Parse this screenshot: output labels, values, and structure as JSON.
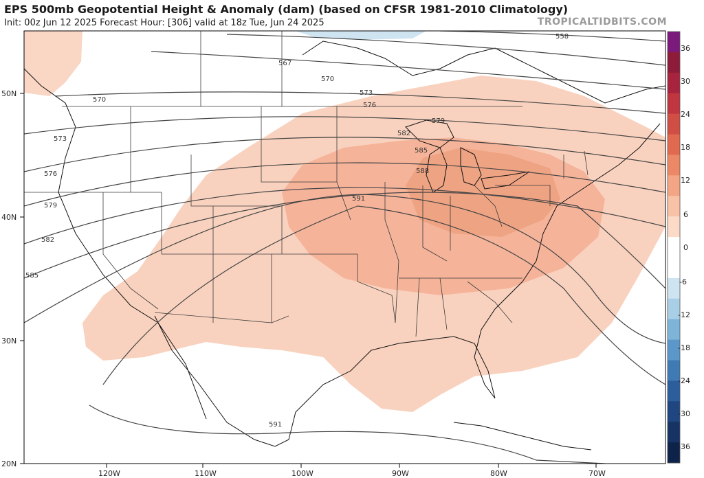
{
  "header": {
    "title": "EPS 500mb Geopotential Height & Anomaly (dam) (based on CFSR 1981-2010 Climatology)",
    "subtitle": "Init: 00z Jun 12 2025   Forecast Hour: [306]   valid at 18z Tue, Jun 24 2025",
    "brand": "TROPICALTIDBITS.COM"
  },
  "axes": {
    "lon_labels": [
      "120W",
      "110W",
      "100W",
      "90W",
      "80W",
      "70W"
    ],
    "lat_labels": [
      "50N",
      "40N",
      "30N",
      "20N"
    ]
  },
  "contours": {
    "labels": [
      "558",
      "567",
      "570",
      "570",
      "573",
      "573",
      "576",
      "576",
      "579",
      "579",
      "582",
      "582",
      "585",
      "585",
      "588",
      "591",
      "591"
    ]
  },
  "colorbar": {
    "tick_labels": [
      "36",
      "30",
      "24",
      "18",
      "12",
      "6",
      "0",
      "-6",
      "-12",
      "-18",
      "-24",
      "-30",
      "-36"
    ],
    "colors": [
      "#7b1a7b",
      "#8e1b3a",
      "#a8243e",
      "#c0353f",
      "#d14e44",
      "#e0694f",
      "#ec8866",
      "#f3a585",
      "#f7c2a6",
      "#fbdbc8",
      "#ffffff",
      "#ffffff",
      "#cfe4f1",
      "#a9cfe6",
      "#7fb4d9",
      "#5b97c8",
      "#3f7ab5",
      "#2d5e9c",
      "#1f4680",
      "#163363",
      "#0e2349"
    ]
  }
}
